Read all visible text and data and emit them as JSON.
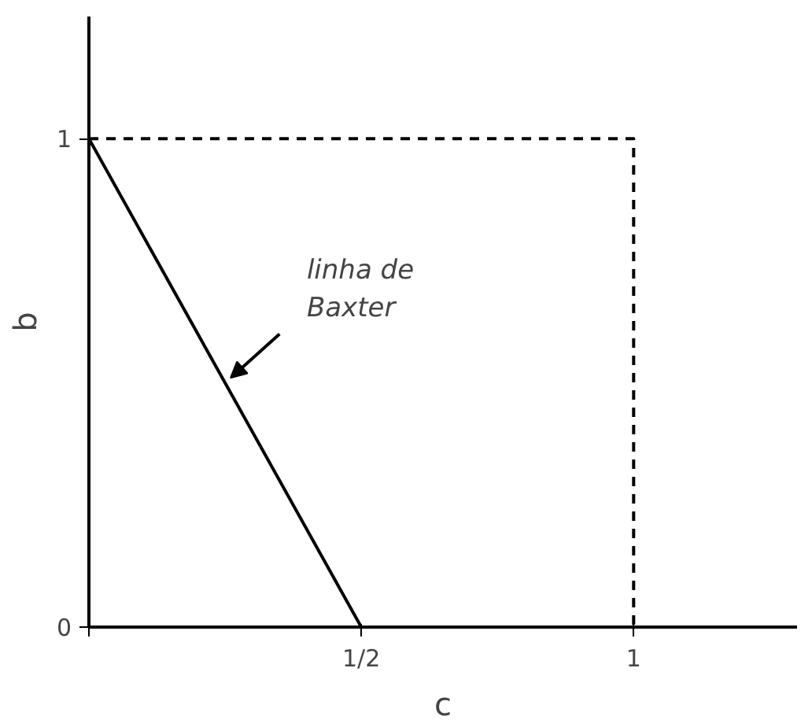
{
  "chart_data": {
    "type": "line",
    "xlabel": "c",
    "ylabel": "b",
    "series": [
      {
        "color": "#000000",
        "x": [
          0,
          0.5
        ],
        "values": [
          1,
          0
        ],
        "line_style": "solid"
      },
      {
        "color": "#000000",
        "x": [
          0,
          1,
          1
        ],
        "values": [
          1,
          1,
          0
        ],
        "line_style": "dashed"
      }
    ],
    "xlim": [
      0,
      1.3
    ],
    "ylim": [
      0,
      1.25
    ],
    "xticks": [
      {
        "value": 0,
        "label": null
      },
      {
        "value": 0.5,
        "label": "1/2"
      },
      1
    ],
    "yticks": [
      0,
      1
    ],
    "annotations": [
      {
        "text": "linha de\nBaxter",
        "x": 0.25,
        "y": 0.5
      }
    ],
    "grid": false,
    "marker": "none"
  }
}
